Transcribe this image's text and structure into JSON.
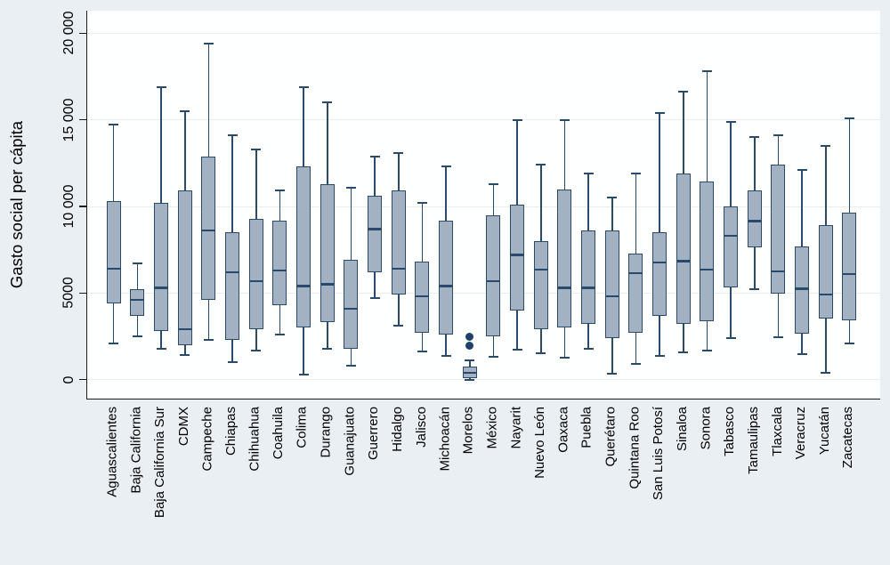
{
  "figure": {
    "y_axis_title": "Gasto social per cápita",
    "y_ticks": [
      {
        "value": 0,
        "label": "0"
      },
      {
        "value": 5000,
        "label": "5000"
      },
      {
        "value": 10000,
        "label": "10 000"
      },
      {
        "value": 15000,
        "label": "15 000"
      },
      {
        "value": 20000,
        "label": "20 000"
      }
    ]
  },
  "colors": {
    "page_background": "#eaeff4",
    "plot_background": "#feffff",
    "gridline": "#ebecee",
    "axis_line": "#1a1a1a",
    "box_fill": "#a3b2c3",
    "box_border": "#2a4a6c",
    "outlier_dot": "#1f4067",
    "text": "#000000"
  },
  "chart_data": {
    "type": "box",
    "title": "",
    "xlabel": "",
    "ylabel": "Gasto social per cápita",
    "ylim": [
      0,
      20000
    ],
    "grid": true,
    "legend": false,
    "categories": [
      "Aguascalientes",
      "Baja California",
      "Baja California Sur",
      "CDMX",
      "Campeche",
      "Chiapas",
      "Chihuahua",
      "Coahuila",
      "Colima",
      "Durango",
      "Guanajuato",
      "Guerrero",
      "Hidalgo",
      "Jalisco",
      "Michoacán",
      "Morelos",
      "México",
      "Nayarit",
      "Nuevo León",
      "Oaxaca",
      "Puebla",
      "Querétaro",
      "Quintana Roo",
      "San Luis Potosí",
      "Sinaloa",
      "Sonora",
      "Tabasco",
      "Tamaulipas",
      "Tlaxcala",
      "Veracruz",
      "Yucatán",
      "Zacatecas"
    ],
    "boxes": [
      {
        "name": "Aguascalientes",
        "low": 2100,
        "q1": 4400,
        "median": 6400,
        "q3": 10300,
        "high": 14700,
        "outliers": []
      },
      {
        "name": "Baja California",
        "low": 2500,
        "q1": 3700,
        "median": 4600,
        "q3": 5200,
        "high": 6700,
        "outliers": []
      },
      {
        "name": "Baja California Sur",
        "low": 1800,
        "q1": 2800,
        "median": 5300,
        "q3": 10200,
        "high": 16900,
        "outliers": []
      },
      {
        "name": "CDMX",
        "low": 1400,
        "q1": 2000,
        "median": 2900,
        "q3": 10900,
        "high": 15500,
        "outliers": []
      },
      {
        "name": "Campeche",
        "low": 2300,
        "q1": 4600,
        "median": 8600,
        "q3": 12900,
        "high": 19400,
        "outliers": []
      },
      {
        "name": "Chiapas",
        "low": 1000,
        "q1": 2300,
        "median": 6200,
        "q3": 8500,
        "high": 14100,
        "outliers": []
      },
      {
        "name": "Chihuahua",
        "low": 1700,
        "q1": 2900,
        "median": 5700,
        "q3": 9300,
        "high": 13300,
        "outliers": []
      },
      {
        "name": "Coahuila",
        "low": 2600,
        "q1": 4300,
        "median": 6300,
        "q3": 9200,
        "high": 10900,
        "outliers": []
      },
      {
        "name": "Colima",
        "low": 300,
        "q1": 3000,
        "median": 5400,
        "q3": 12300,
        "high": 16900,
        "outliers": []
      },
      {
        "name": "Durango",
        "low": 1800,
        "q1": 3300,
        "median": 5500,
        "q3": 11300,
        "high": 16000,
        "outliers": []
      },
      {
        "name": "Guanajuato",
        "low": 800,
        "q1": 1800,
        "median": 4100,
        "q3": 6900,
        "high": 11100,
        "outliers": []
      },
      {
        "name": "Guerrero",
        "low": 4700,
        "q1": 6200,
        "median": 8700,
        "q3": 10600,
        "high": 12900,
        "outliers": []
      },
      {
        "name": "Hidalgo",
        "low": 3100,
        "q1": 4900,
        "median": 6400,
        "q3": 10900,
        "high": 13100,
        "outliers": []
      },
      {
        "name": "Jalisco",
        "low": 1650,
        "q1": 2700,
        "median": 4800,
        "q3": 6800,
        "high": 10200,
        "outliers": []
      },
      {
        "name": "Michoacán",
        "low": 1350,
        "q1": 2600,
        "median": 5400,
        "q3": 9200,
        "high": 12300,
        "outliers": []
      },
      {
        "name": "Morelos",
        "low": 0,
        "q1": 100,
        "median": 400,
        "q3": 750,
        "high": 1100,
        "outliers": [
          1950,
          2450
        ]
      },
      {
        "name": "México",
        "low": 1300,
        "q1": 2500,
        "median": 5700,
        "q3": 9500,
        "high": 11300,
        "outliers": []
      },
      {
        "name": "Nayarit",
        "low": 1750,
        "q1": 4000,
        "median": 7200,
        "q3": 10100,
        "high": 15000,
        "outliers": []
      },
      {
        "name": "Nuevo León",
        "low": 1550,
        "q1": 2900,
        "median": 6350,
        "q3": 8000,
        "high": 12400,
        "outliers": []
      },
      {
        "name": "Oaxaca",
        "low": 1250,
        "q1": 3000,
        "median": 5300,
        "q3": 11000,
        "high": 15000,
        "outliers": []
      },
      {
        "name": "Puebla",
        "low": 1800,
        "q1": 3200,
        "median": 5300,
        "q3": 8600,
        "high": 11900,
        "outliers": []
      },
      {
        "name": "Querétaro",
        "low": 350,
        "q1": 2400,
        "median": 4800,
        "q3": 8600,
        "high": 10500,
        "outliers": []
      },
      {
        "name": "Quintana Roo",
        "low": 900,
        "q1": 2700,
        "median": 6150,
        "q3": 7300,
        "high": 11900,
        "outliers": []
      },
      {
        "name": "San Luis Potosí",
        "low": 1350,
        "q1": 3700,
        "median": 6750,
        "q3": 8500,
        "high": 15400,
        "outliers": []
      },
      {
        "name": "Sinaloa",
        "low": 1600,
        "q1": 3200,
        "median": 6850,
        "q3": 11900,
        "high": 16600,
        "outliers": []
      },
      {
        "name": "Sonora",
        "low": 1700,
        "q1": 3350,
        "median": 6350,
        "q3": 11450,
        "high": 17800,
        "outliers": []
      },
      {
        "name": "Tabasco",
        "low": 2400,
        "q1": 5350,
        "median": 8300,
        "q3": 10000,
        "high": 14900,
        "outliers": []
      },
      {
        "name": "Tamaulipas",
        "low": 5200,
        "q1": 7650,
        "median": 9150,
        "q3": 10950,
        "high": 14000,
        "outliers": []
      },
      {
        "name": "Tlaxcala",
        "low": 2450,
        "q1": 4950,
        "median": 6250,
        "q3": 12400,
        "high": 14100,
        "outliers": []
      },
      {
        "name": "Veracruz",
        "low": 1450,
        "q1": 2650,
        "median": 5250,
        "q3": 7700,
        "high": 12100,
        "outliers": []
      },
      {
        "name": "Yucatán",
        "low": 400,
        "q1": 3550,
        "median": 4900,
        "q3": 8900,
        "high": 13500,
        "outliers": []
      },
      {
        "name": "Zacatecas",
        "low": 2100,
        "q1": 3450,
        "median": 6100,
        "q3": 9650,
        "high": 15100,
        "outliers": []
      }
    ]
  }
}
